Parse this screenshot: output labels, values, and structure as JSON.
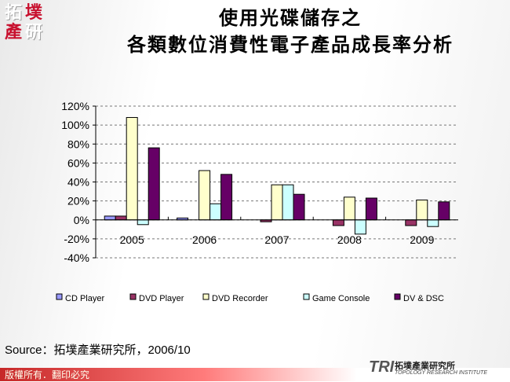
{
  "header": {
    "logo_chars": [
      "拓",
      "墣",
      "產",
      "研"
    ],
    "title_line1": "使用光碟儲存之",
    "title_line2": "各類數位消費性電子產品成長率分析"
  },
  "chart_data": {
    "type": "bar",
    "categories": [
      "2005",
      "2006",
      "2007",
      "2008",
      "2009"
    ],
    "ylim": [
      -40,
      120
    ],
    "yticks": [
      "120%",
      "100%",
      "80%",
      "60%",
      "40%",
      "20%",
      "0%",
      "-20%",
      "-40%"
    ],
    "ytick_values": [
      120,
      100,
      80,
      60,
      40,
      20,
      0,
      -20,
      -40
    ],
    "grid": true,
    "legend_position": "bottom",
    "series": [
      {
        "name": "CD Player",
        "color": "#9999ff",
        "values": [
          4,
          2,
          0,
          0,
          0
        ]
      },
      {
        "name": "DVD Player",
        "color": "#993366",
        "values": [
          4,
          0,
          -2,
          -6,
          -6
        ]
      },
      {
        "name": "DVD Recorder",
        "color": "#ffffcc",
        "values": [
          108,
          52,
          37,
          24,
          21
        ]
      },
      {
        "name": "Game Console",
        "color": "#ccffff",
        "values": [
          -5,
          17,
          37,
          -15,
          -7
        ]
      },
      {
        "name": "DV & DSC",
        "color": "#660066",
        "values": [
          76,
          48,
          27,
          23,
          19
        ]
      }
    ]
  },
  "source": "Source：拓墣產業研究所，2006/10",
  "footer": {
    "copyright": "版權所有．翻印必究",
    "brand_mark": "TRI",
    "brand_name": "拓墣產業研究所",
    "brand_sub": "TOPOLOGY RESEARCH INSTITUTE"
  }
}
